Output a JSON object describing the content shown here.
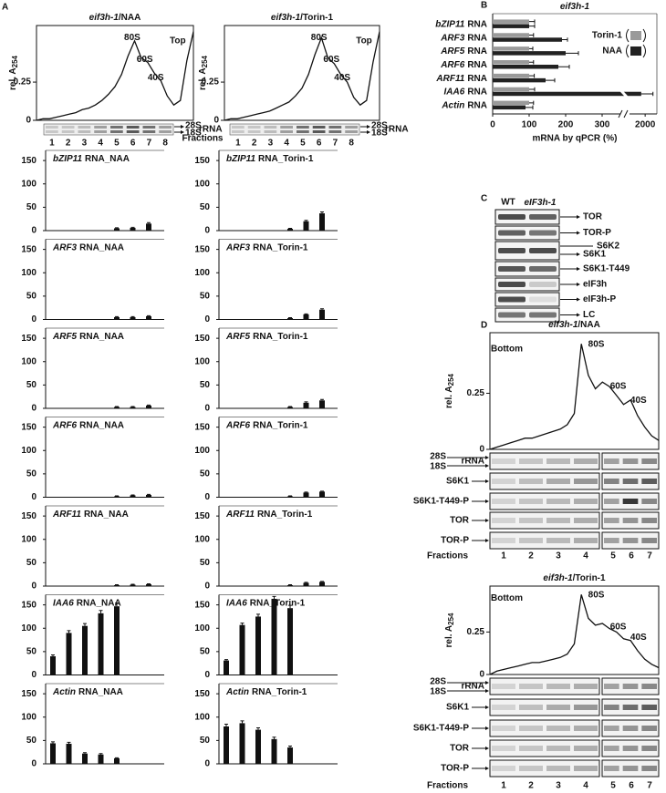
{
  "panel_labels": [
    "A",
    "B",
    "C",
    "D"
  ],
  "panel_a": {
    "profiles": [
      {
        "gene": "eif3h-1",
        "condition": "/NAA",
        "corner": "Top",
        "peaks": [
          "80S",
          "60S",
          "40S"
        ],
        "ylabel": "rel. A",
        "ylabel_sub": "254",
        "ylim": [
          0,
          0.62
        ],
        "yticks": [
          0,
          0.25
        ],
        "trace": [
          0,
          0.01,
          0.01,
          0.02,
          0.03,
          0.04,
          0.05,
          0.07,
          0.08,
          0.1,
          0.13,
          0.17,
          0.22,
          0.3,
          0.42,
          0.52,
          0.41,
          0.38,
          0.31,
          0.26,
          0.16,
          0.1,
          0.13,
          0.39,
          0.58
        ]
      },
      {
        "gene": "eif3h-1",
        "condition": "/Torin-1",
        "corner": "Top",
        "peaks": [
          "80S",
          "60S",
          "40S"
        ],
        "ylabel": "rel. A",
        "ylabel_sub": "254",
        "ylim": [
          0,
          0.62
        ],
        "yticks": [
          0,
          0.25
        ],
        "trace": [
          0,
          0.01,
          0.01,
          0.02,
          0.03,
          0.04,
          0.05,
          0.06,
          0.08,
          0.1,
          0.12,
          0.16,
          0.21,
          0.3,
          0.43,
          0.54,
          0.41,
          0.37,
          0.3,
          0.25,
          0.15,
          0.1,
          0.13,
          0.38,
          0.58
        ]
      }
    ],
    "gel": {
      "bands": [
        "28S",
        "18S"
      ],
      "rna": "rRNA",
      "fractions_label": "Fractions",
      "fractions": [
        1,
        2,
        3,
        4,
        5,
        6,
        7,
        8
      ]
    },
    "bar_ylim": [
      0,
      160
    ],
    "bar_yticks": [
      0,
      50,
      100,
      150
    ],
    "charts": [
      {
        "gene": "bZIP11",
        "label": "RNA_NAA",
        "values": [
          null,
          null,
          null,
          null,
          5,
          6,
          15
        ],
        "errors": [
          null,
          null,
          null,
          null,
          1,
          1,
          2
        ]
      },
      {
        "gene": "bZIP11",
        "label": "RNA_Torin-1",
        "values": [
          null,
          null,
          null,
          null,
          4,
          20,
          37
        ],
        "errors": [
          null,
          null,
          null,
          null,
          1,
          2,
          3
        ]
      },
      {
        "gene": "ARF3",
        "label": "RNA_NAA",
        "values": [
          null,
          null,
          null,
          null,
          5,
          5,
          7
        ],
        "errors": [
          null,
          null,
          null,
          null,
          1,
          1,
          1
        ]
      },
      {
        "gene": "ARF3",
        "label": "RNA_Torin-1",
        "values": [
          null,
          null,
          null,
          null,
          3,
          11,
          21
        ],
        "errors": [
          null,
          null,
          null,
          null,
          1,
          1,
          2
        ]
      },
      {
        "gene": "ARF5",
        "label": "RNA_NAA",
        "values": [
          null,
          null,
          null,
          null,
          3,
          3,
          6
        ],
        "errors": [
          null,
          null,
          null,
          null,
          1,
          1,
          1
        ]
      },
      {
        "gene": "ARF5",
        "label": "RNA_Torin-1",
        "values": [
          null,
          null,
          null,
          null,
          3,
          12,
          17
        ],
        "errors": [
          null,
          null,
          null,
          null,
          1,
          2,
          2
        ]
      },
      {
        "gene": "ARF6",
        "label": "RNA_NAA",
        "values": [
          null,
          null,
          null,
          null,
          2,
          4,
          5
        ],
        "errors": [
          null,
          null,
          null,
          null,
          1,
          1,
          1
        ]
      },
      {
        "gene": "ARF6",
        "label": "RNA_Torin-1",
        "values": [
          null,
          null,
          null,
          null,
          2,
          10,
          12
        ],
        "errors": [
          null,
          null,
          null,
          null,
          1,
          1,
          1
        ]
      },
      {
        "gene": "ARF11",
        "label": "RNA_NAA",
        "values": [
          null,
          null,
          null,
          null,
          2,
          3,
          4
        ],
        "errors": [
          null,
          null,
          null,
          null,
          1,
          1,
          1
        ]
      },
      {
        "gene": "ARF11",
        "label": "RNA_Torin-1",
        "values": [
          null,
          null,
          null,
          null,
          2,
          7,
          9
        ],
        "errors": [
          null,
          null,
          null,
          null,
          1,
          1,
          1
        ]
      },
      {
        "gene": "IAA6",
        "label": "RNA_NAA",
        "values": [
          40,
          90,
          105,
          132,
          147,
          null,
          null
        ],
        "errors": [
          3,
          5,
          5,
          6,
          7,
          null,
          null
        ]
      },
      {
        "gene": "IAA6",
        "label": "RNA_Torin-1",
        "values": [
          31,
          107,
          125,
          163,
          143,
          null,
          null
        ],
        "errors": [
          2,
          4,
          5,
          5,
          6,
          null,
          null
        ]
      },
      {
        "gene": "Actin",
        "label": "RNA_NAA",
        "values": [
          44,
          43,
          22,
          20,
          12,
          null,
          null
        ],
        "errors": [
          3,
          3,
          2,
          2,
          1,
          null,
          null
        ]
      },
      {
        "gene": "Actin",
        "label": "RNA_Torin-1",
        "values": [
          80,
          87,
          73,
          53,
          35,
          null,
          null
        ],
        "errors": [
          5,
          5,
          4,
          4,
          3,
          null,
          null
        ]
      }
    ]
  },
  "panel_b": {
    "title": "eif3h-1",
    "categories": [
      "bZIP11",
      "ARF3",
      "ARF5",
      "ARF6",
      "ARF11",
      "IAA6",
      "Actin"
    ],
    "category_suffix": "RNA",
    "series": [
      {
        "name": "Torin-1",
        "color": "#9a9a9a",
        "values": [
          100,
          100,
          100,
          100,
          100,
          100,
          100
        ],
        "errors": [
          15,
          12,
          10,
          12,
          14,
          15,
          12
        ]
      },
      {
        "name": "NAA",
        "color": "#222222",
        "values": [
          100,
          190,
          200,
          180,
          145,
          1950,
          90
        ],
        "errors": [
          15,
          15,
          35,
          30,
          25,
          150,
          20
        ]
      }
    ],
    "xlim": [
      0,
      2150
    ],
    "axis_break": [
      350,
      1800
    ],
    "xticks": [
      0,
      100,
      200,
      300,
      2000
    ],
    "xlabel": "mRNA by qPCR (%)"
  },
  "panel_c": {
    "lanes": [
      "WT",
      "eIF3h-1"
    ],
    "rows": [
      "TOR",
      "TOR-P",
      "S6K2",
      "S6K1",
      "S6K1-T449",
      "eIF3h",
      "eIF3h-P",
      "LC"
    ]
  },
  "panel_d": {
    "profiles": [
      {
        "gene": "eif3h-1",
        "condition": "/NAA",
        "corner": "Bottom",
        "peaks": [
          "80S",
          "60S",
          "40S"
        ],
        "ylabel": "rel. A",
        "ylabel_sub": "254",
        "ylim": [
          0,
          0.52
        ],
        "yticks": [
          0,
          0.25
        ],
        "trace": [
          0,
          0.01,
          0.02,
          0.03,
          0.04,
          0.05,
          0.05,
          0.06,
          0.07,
          0.08,
          0.09,
          0.11,
          0.16,
          0.47,
          0.33,
          0.27,
          0.3,
          0.28,
          0.24,
          0.2,
          0.22,
          0.15,
          0.1,
          0.06,
          0.04
        ]
      },
      {
        "gene": "eif3h-1",
        "condition": "/Torin-1",
        "corner": "Bottom",
        "peaks": [
          "80S",
          "60S",
          "40S"
        ],
        "ylabel": "rel. A",
        "ylabel_sub": "254",
        "ylim": [
          0,
          0.52
        ],
        "yticks": [
          0,
          0.25
        ],
        "trace": [
          0,
          0.02,
          0.03,
          0.04,
          0.05,
          0.06,
          0.07,
          0.07,
          0.08,
          0.09,
          0.1,
          0.12,
          0.18,
          0.47,
          0.33,
          0.29,
          0.3,
          0.27,
          0.25,
          0.21,
          0.2,
          0.14,
          0.09,
          0.06,
          0.04
        ]
      }
    ],
    "bands": [
      "28S",
      "18S"
    ],
    "rna": "rRNA",
    "rows": [
      "S6K1",
      "S6K1-T449-P",
      "TOR",
      "TOR-P"
    ],
    "fractions_label": "Fractions",
    "fractions": [
      1,
      2,
      3,
      4,
      5,
      6,
      7
    ]
  }
}
